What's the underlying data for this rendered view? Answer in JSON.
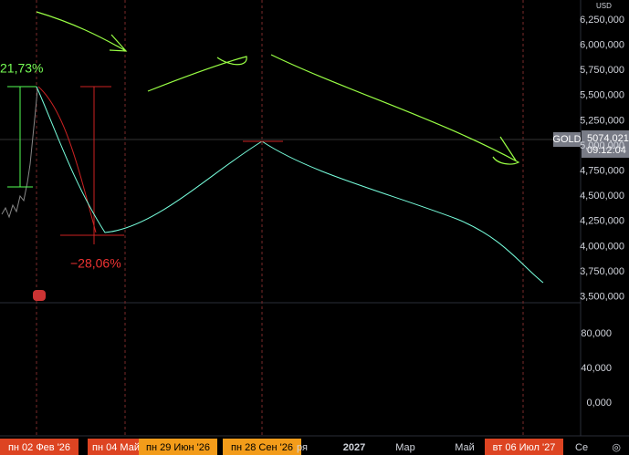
{
  "price_axis": {
    "currency": "USD",
    "labels": [
      "6,250,000",
      "6,000,000",
      "5,750,000",
      "5,500,000",
      "5,250,000",
      "5,000,000",
      "4,750,000",
      "4,500,000",
      "4,250,000",
      "4,000,000",
      "3,750,000",
      "3,500,000"
    ]
  },
  "volume_axis": {
    "labels": [
      "80,000",
      "40,000",
      "0,000"
    ]
  },
  "symbol": {
    "name": "GOLD",
    "price": "5074,021",
    "time": "09:12:04"
  },
  "annotations": {
    "gain": "21,73%",
    "loss": "−28,06%"
  },
  "time_axis": {
    "labels": [
      "2",
      "пн 02 Фев '26",
      "пн 04 Май",
      "пн 29 Июн '26",
      "пн 28 Сен '26",
      "ря",
      "2027",
      "Мар",
      "Май",
      "вт 06 Июл '27",
      "Се"
    ]
  }
}
